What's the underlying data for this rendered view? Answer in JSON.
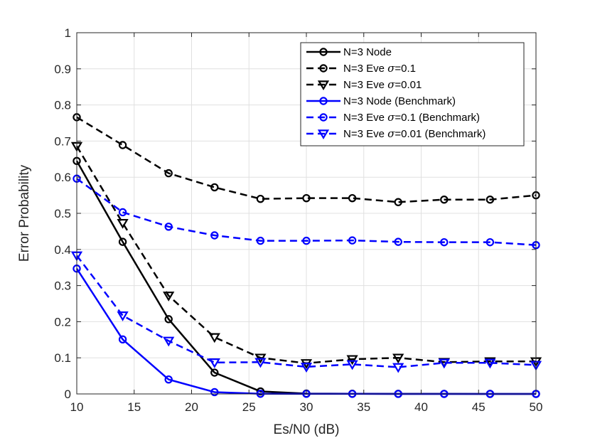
{
  "chart_data": {
    "type": "line",
    "xlabel": "Es/N0 (dB)",
    "ylabel": "Error Probability",
    "xlim": [
      10,
      50
    ],
    "ylim": [
      0,
      1
    ],
    "xticks": [
      10,
      15,
      20,
      25,
      30,
      35,
      40,
      45,
      50
    ],
    "yticks": [
      0,
      0.1,
      0.2,
      0.3,
      0.4,
      0.5,
      0.6,
      0.7,
      0.8,
      0.9,
      1
    ],
    "xtick_labels": [
      "10",
      "15",
      "20",
      "25",
      "30",
      "35",
      "40",
      "45",
      "50"
    ],
    "ytick_labels": [
      "0",
      "0.1",
      "0.2",
      "0.3",
      "0.4",
      "0.5",
      "0.6",
      "0.7",
      "0.8",
      "0.9",
      "1"
    ],
    "grid": true,
    "legend_position": "top-right",
    "x": [
      10,
      14,
      18,
      22,
      26,
      30,
      34,
      38,
      42,
      46,
      50
    ],
    "series": [
      {
        "name": "N=3 Node",
        "legend_prefix": "N=3 Node",
        "legend_suffix": "",
        "color": "#000000",
        "dash": "solid",
        "marker": "circle",
        "values": [
          0.645,
          0.421,
          0.207,
          0.059,
          0.007,
          0.001,
          0.0005,
          0.0003,
          0.0002,
          0.0001,
          0.0001
        ]
      },
      {
        "name": "N=3 Eve σ=0.1",
        "legend_prefix": "N=3 Eve ",
        "legend_suffix": "=0.1",
        "color": "#000000",
        "dash": "dashed",
        "marker": "circle",
        "values": [
          0.766,
          0.689,
          0.611,
          0.572,
          0.54,
          0.542,
          0.542,
          0.531,
          0.538,
          0.538,
          0.55
        ]
      },
      {
        "name": "N=3 Eve σ=0.01",
        "legend_prefix": "N=3 Eve ",
        "legend_suffix": "=0.01",
        "color": "#000000",
        "dash": "dashed",
        "marker": "triangle",
        "values": [
          0.686,
          0.473,
          0.272,
          0.157,
          0.1,
          0.085,
          0.096,
          0.1,
          0.088,
          0.09,
          0.09
        ]
      },
      {
        "name": "N=3 Node (Benchmark)",
        "legend_prefix": "N=3 Node (Benchmark)",
        "legend_suffix": "",
        "color": "#0000ff",
        "dash": "solid",
        "marker": "circle",
        "values": [
          0.347,
          0.151,
          0.04,
          0.005,
          0.0005,
          0.0003,
          0.0002,
          0.0001,
          0.0001,
          0.0001,
          0.0001
        ]
      },
      {
        "name": "N=3 Eve σ=0.1 (Benchmark)",
        "legend_prefix": "N=3 Eve ",
        "legend_suffix": "=0.1 (Benchmark)",
        "color": "#0000ff",
        "dash": "dashed",
        "marker": "circle",
        "values": [
          0.596,
          0.503,
          0.463,
          0.439,
          0.424,
          0.424,
          0.425,
          0.421,
          0.42,
          0.42,
          0.412
        ]
      },
      {
        "name": "N=3 Eve σ=0.01 (Benchmark)",
        "legend_prefix": "N=3 Eve ",
        "legend_suffix": "=0.01 (Benchmark)",
        "color": "#0000ff",
        "dash": "dashed",
        "marker": "triangle",
        "values": [
          0.383,
          0.217,
          0.147,
          0.087,
          0.088,
          0.075,
          0.082,
          0.074,
          0.086,
          0.086,
          0.08
        ]
      }
    ],
    "sigma_symbol": "σ"
  }
}
